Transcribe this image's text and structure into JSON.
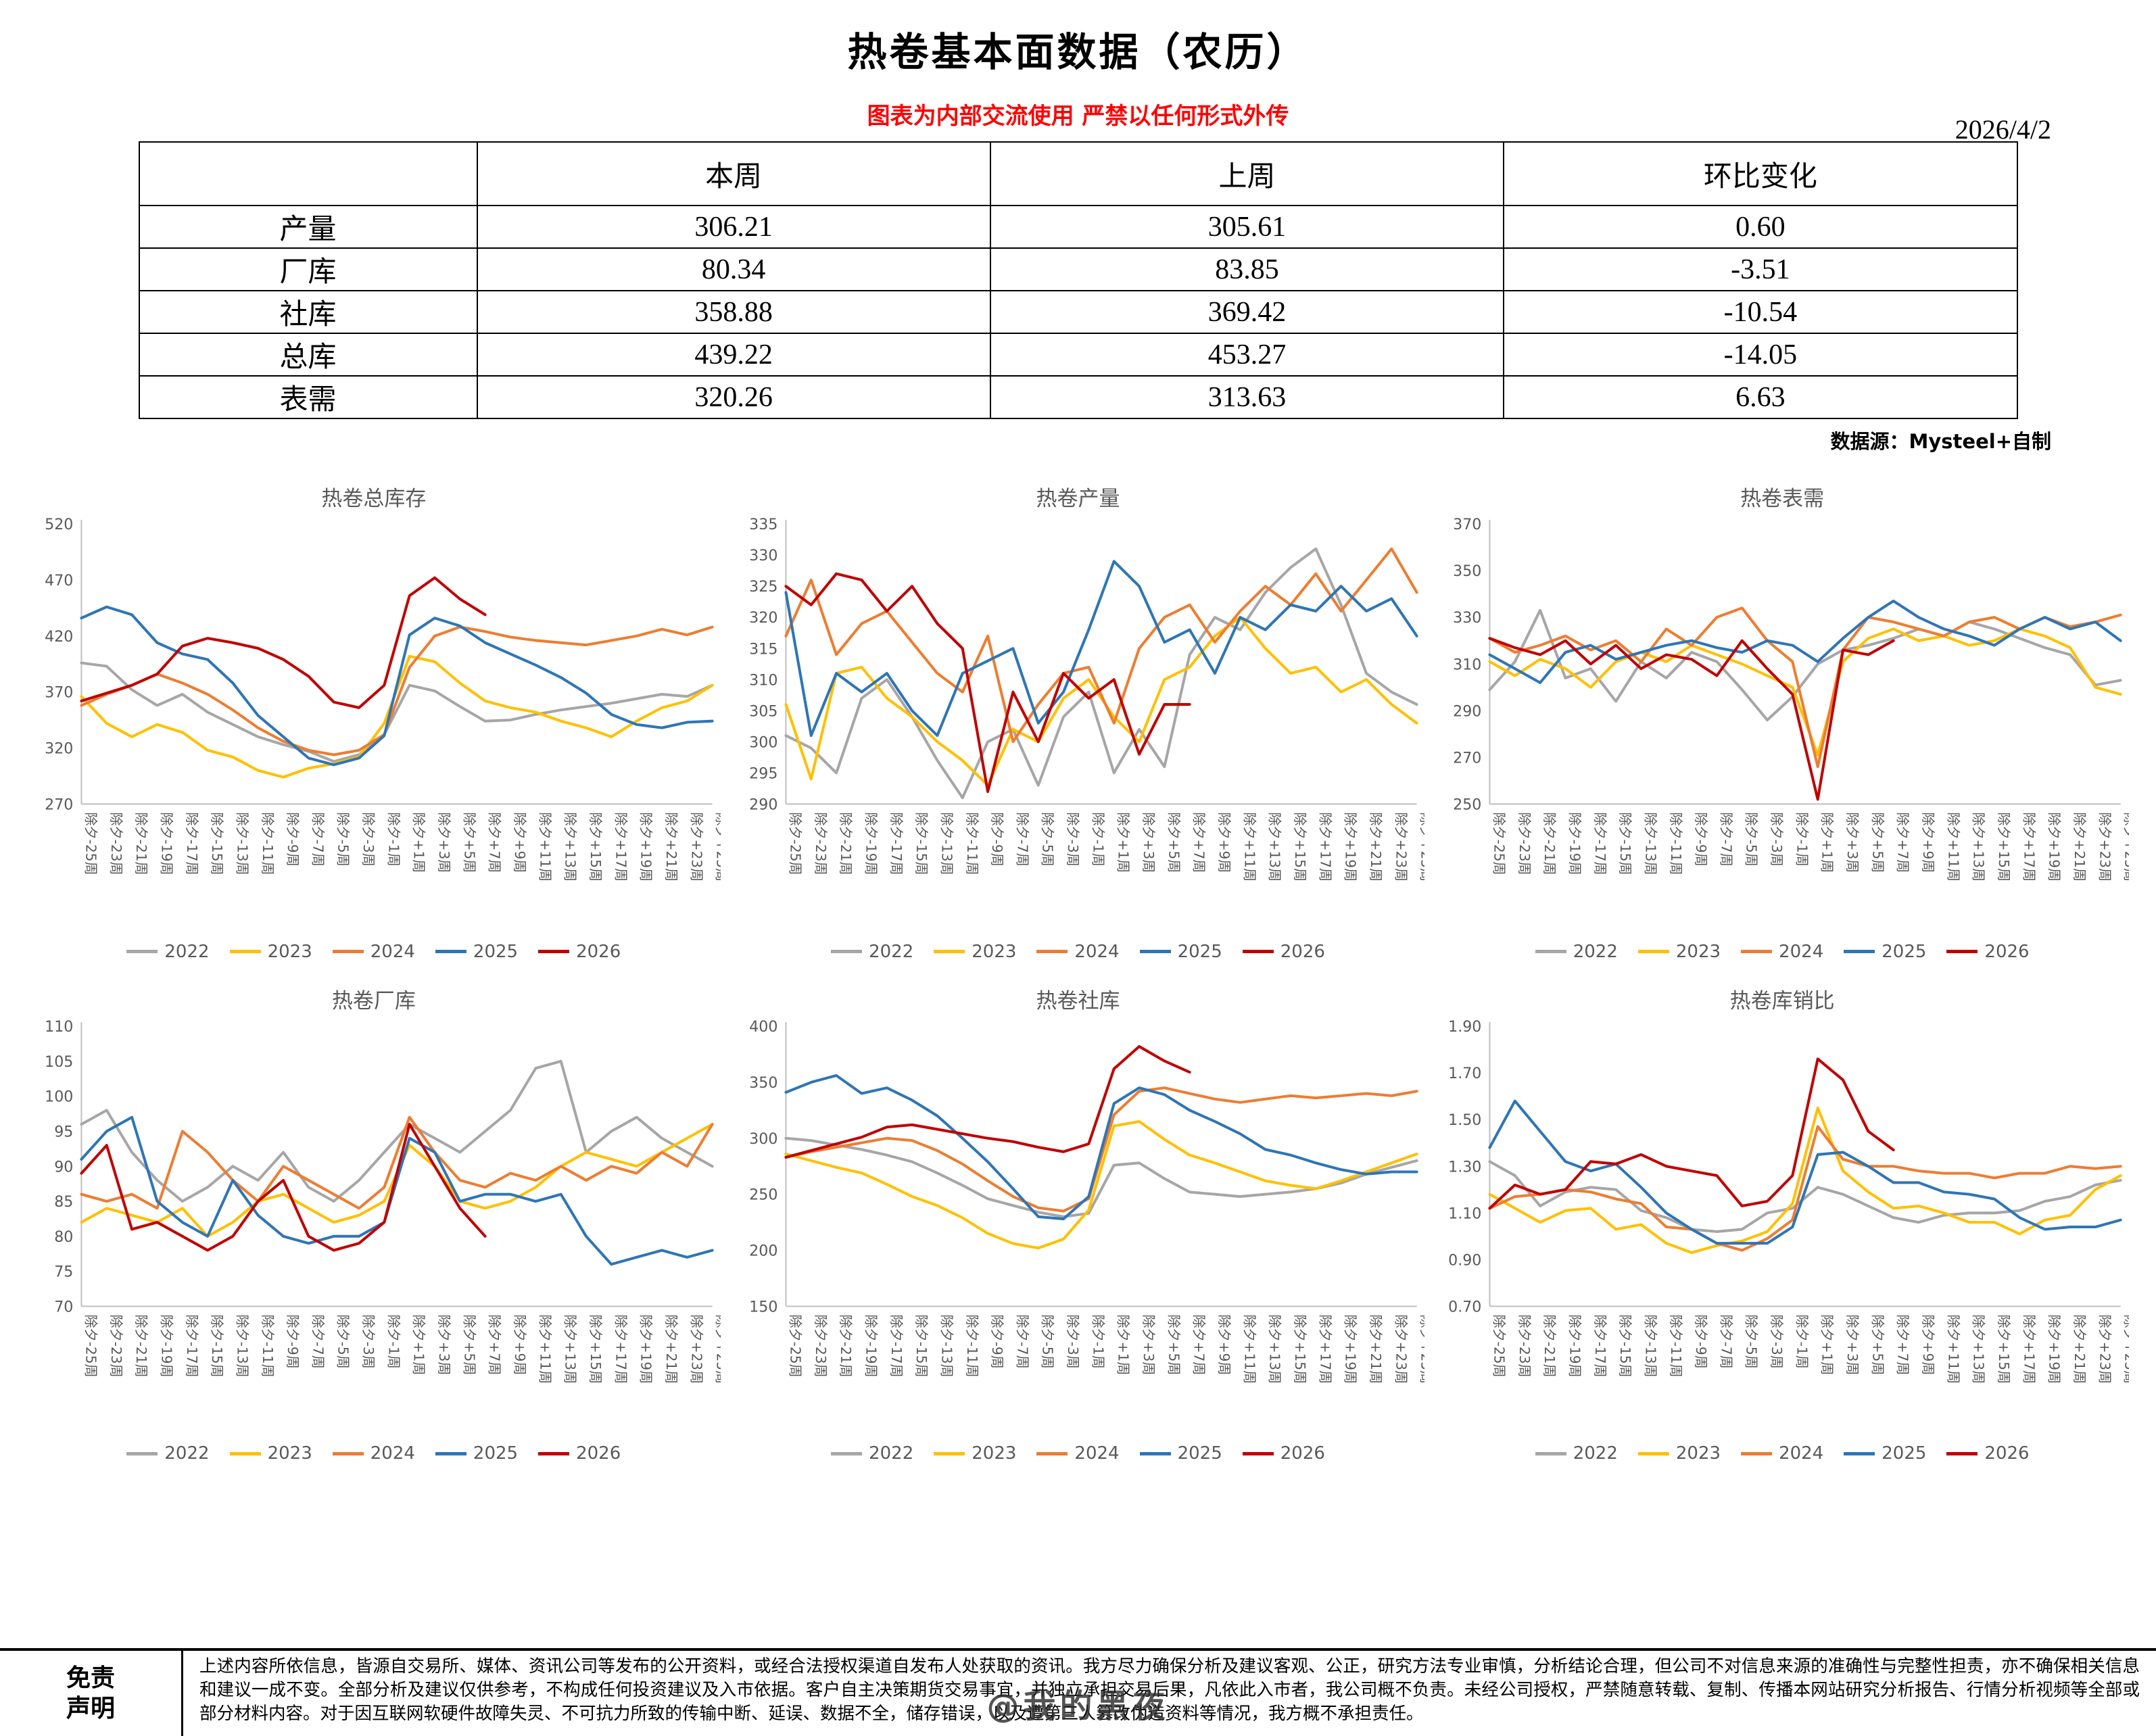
{
  "header": {
    "title": "热卷基本面数据（农历）",
    "date": "2026/4/2",
    "warning": "图表为内部交流使用 严禁以任何形式外传",
    "source": "数据源：Mysteel+自制"
  },
  "table": {
    "headers": [
      "",
      "本周",
      "上周",
      "环比变化"
    ],
    "rows": [
      {
        "label": "产量",
        "this_week": "306.21",
        "last_week": "305.61",
        "change": "0.60"
      },
      {
        "label": "厂库",
        "this_week": "80.34",
        "last_week": "83.85",
        "change": "-3.51"
      },
      {
        "label": "社库",
        "this_week": "358.88",
        "last_week": "369.42",
        "change": "-10.54"
      },
      {
        "label": "总库",
        "this_week": "439.22",
        "last_week": "453.27",
        "change": "-14.05"
      },
      {
        "label": "表需",
        "this_week": "320.26",
        "last_week": "313.63",
        "change": "6.63"
      }
    ]
  },
  "colors": {
    "y2022": "#a6a6a6",
    "y2023": "#ffc000",
    "y2024": "#ed7d31",
    "y2025": "#2e75b6",
    "y2026": "#c00000",
    "warning_red": "#ff0000",
    "axis_gray": "#bfbfbf",
    "tick_gray": "#595959"
  },
  "week_labels": [
    "除夕-25周",
    "除夕-23周",
    "除夕-21周",
    "除夕-19周",
    "除夕-17周",
    "除夕-15周",
    "除夕-13周",
    "除夕-11周",
    "除夕-9周",
    "除夕-7周",
    "除夕-5周",
    "除夕-3周",
    "除夕-1周",
    "除夕+1周",
    "除夕+3周",
    "除夕+5周",
    "除夕+7周",
    "除夕+9周",
    "除夕+11周",
    "除夕+13周",
    "除夕+15周",
    "除夕+17周",
    "除夕+19周",
    "除夕+21周",
    "除夕+23周",
    "除夕+25周"
  ],
  "chart_data": [
    {
      "type": "line",
      "title": "热卷总库存",
      "ylim": [
        270,
        520
      ],
      "yticks": [
        270,
        320,
        370,
        420,
        470,
        520
      ],
      "ydecimals": 0,
      "series": [
        {
          "name": "2022",
          "color": "#a6a6a6",
          "values": [
            396,
            393,
            372,
            358,
            368,
            352,
            341,
            330,
            323,
            317,
            308,
            314,
            332,
            376,
            371,
            357,
            344,
            345,
            350,
            354,
            357,
            360,
            364,
            368,
            366,
            376
          ]
        },
        {
          "name": "2023",
          "color": "#ffc000",
          "values": [
            366,
            342,
            330,
            341,
            334,
            318,
            312,
            300,
            294,
            302,
            306,
            312,
            342,
            402,
            397,
            378,
            362,
            356,
            352,
            344,
            338,
            330,
            344,
            356,
            362,
            376
          ]
        },
        {
          "name": "2024",
          "color": "#ed7d31",
          "values": [
            358,
            368,
            376,
            386,
            378,
            368,
            354,
            338,
            326,
            318,
            314,
            318,
            332,
            392,
            420,
            428,
            424,
            419,
            416,
            414,
            412,
            416,
            420,
            426,
            421,
            428
          ]
        },
        {
          "name": "2025",
          "color": "#2e75b6",
          "values": [
            436,
            446,
            439,
            414,
            404,
            399,
            378,
            349,
            330,
            311,
            305,
            311,
            331,
            421,
            436,
            429,
            414,
            404,
            394,
            383,
            369,
            350,
            341,
            338,
            343,
            344
          ]
        },
        {
          "name": "2026",
          "color": "#c00000",
          "values": [
            362,
            369,
            376,
            386,
            411,
            418,
            414,
            409,
            399,
            384,
            361,
            356,
            376,
            456,
            472,
            453,
            439
          ]
        }
      ]
    },
    {
      "type": "line",
      "title": "热卷产量",
      "ylim": [
        290,
        335
      ],
      "yticks": [
        290,
        295,
        300,
        305,
        310,
        315,
        320,
        325,
        330,
        335
      ],
      "ydecimals": 0,
      "series": [
        {
          "name": "2022",
          "color": "#a6a6a6",
          "values": [
            301,
            299,
            295,
            307,
            310,
            304,
            297,
            291,
            300,
            302,
            293,
            304,
            308,
            295,
            302,
            296,
            314,
            320,
            318,
            324,
            328,
            331,
            322,
            311,
            308,
            306
          ]
        },
        {
          "name": "2023",
          "color": "#ffc000",
          "values": [
            306,
            294,
            311,
            312,
            307,
            304,
            300,
            297,
            293,
            302,
            300,
            307,
            310,
            304,
            300,
            310,
            312,
            317,
            320,
            315,
            311,
            312,
            308,
            310,
            306,
            303
          ]
        },
        {
          "name": "2024",
          "color": "#ed7d31",
          "values": [
            317,
            326,
            314,
            319,
            321,
            316,
            311,
            308,
            317,
            300,
            306,
            311,
            312,
            303,
            315,
            320,
            322,
            316,
            321,
            325,
            322,
            327,
            321,
            326,
            331,
            324
          ]
        },
        {
          "name": "2025",
          "color": "#2e75b6",
          "values": [
            324,
            301,
            311,
            308,
            311,
            305,
            301,
            311,
            313,
            315,
            303,
            308,
            318,
            329,
            325,
            316,
            318,
            311,
            320,
            318,
            322,
            321,
            325,
            321,
            323,
            317
          ]
        },
        {
          "name": "2026",
          "color": "#c00000",
          "values": [
            325,
            322,
            327,
            326,
            321,
            325,
            319,
            315,
            292,
            308,
            300,
            311,
            307,
            310,
            298,
            306,
            306
          ]
        }
      ]
    },
    {
      "type": "line",
      "title": "热卷表需",
      "ylim": [
        250,
        370
      ],
      "yticks": [
        250,
        270,
        290,
        310,
        330,
        350,
        370
      ],
      "ydecimals": 0,
      "series": [
        {
          "name": "2022",
          "color": "#a6a6a6",
          "values": [
            299,
            311,
            333,
            304,
            308,
            294,
            311,
            304,
            315,
            311,
            299,
            286,
            296,
            310,
            316,
            318,
            321,
            325,
            322,
            328,
            325,
            321,
            317,
            314,
            301,
            303
          ]
        },
        {
          "name": "2023",
          "color": "#ffc000",
          "values": [
            311,
            305,
            312,
            308,
            300,
            311,
            315,
            311,
            318,
            314,
            310,
            305,
            300,
            271,
            311,
            321,
            325,
            320,
            322,
            318,
            320,
            325,
            322,
            317,
            300,
            297
          ]
        },
        {
          "name": "2024",
          "color": "#ed7d31",
          "values": [
            321,
            315,
            318,
            322,
            316,
            320,
            311,
            325,
            318,
            330,
            334,
            320,
            311,
            266,
            316,
            330,
            328,
            325,
            322,
            328,
            330,
            325,
            330,
            326,
            328,
            331
          ]
        },
        {
          "name": "2025",
          "color": "#2e75b6",
          "values": [
            314,
            308,
            302,
            315,
            318,
            312,
            315,
            318,
            320,
            317,
            315,
            320,
            318,
            311,
            321,
            330,
            337,
            330,
            325,
            322,
            318,
            325,
            330,
            325,
            328,
            320
          ]
        },
        {
          "name": "2026",
          "color": "#c00000",
          "values": [
            321,
            317,
            314,
            320,
            310,
            318,
            308,
            314,
            312,
            305,
            320,
            308,
            297,
            252,
            316,
            314,
            320
          ]
        }
      ]
    },
    {
      "type": "line",
      "title": "热卷厂库",
      "ylim": [
        70,
        110
      ],
      "yticks": [
        70,
        75,
        80,
        85,
        90,
        95,
        100,
        105,
        110
      ],
      "ydecimals": 0,
      "series": [
        {
          "name": "2022",
          "color": "#a6a6a6",
          "values": [
            96,
            98,
            92,
            88,
            85,
            87,
            90,
            88,
            92,
            87,
            85,
            88,
            92,
            96,
            94,
            92,
            95,
            98,
            104,
            105,
            92,
            95,
            97,
            94,
            92,
            90
          ]
        },
        {
          "name": "2023",
          "color": "#ffc000",
          "values": [
            82,
            84,
            83,
            82,
            84,
            80,
            82,
            85,
            86,
            84,
            82,
            83,
            85,
            93,
            90,
            85,
            84,
            85,
            87,
            90,
            92,
            91,
            90,
            92,
            94,
            96
          ]
        },
        {
          "name": "2024",
          "color": "#ed7d31",
          "values": [
            86,
            85,
            86,
            84,
            95,
            92,
            88,
            85,
            90,
            88,
            86,
            84,
            87,
            97,
            92,
            88,
            87,
            89,
            88,
            90,
            88,
            90,
            89,
            92,
            90,
            96
          ]
        },
        {
          "name": "2025",
          "color": "#2e75b6",
          "values": [
            91,
            95,
            97,
            85,
            82,
            80,
            88,
            83,
            80,
            79,
            80,
            80,
            82,
            94,
            92,
            85,
            86,
            86,
            85,
            86,
            80,
            76,
            77,
            78,
            77,
            78
          ]
        },
        {
          "name": "2026",
          "color": "#c00000",
          "values": [
            89,
            93,
            81,
            82,
            80,
            78,
            80,
            85,
            88,
            80,
            78,
            79,
            82,
            96,
            90,
            84,
            80
          ]
        }
      ]
    },
    {
      "type": "line",
      "title": "热卷社库",
      "ylim": [
        150,
        400
      ],
      "yticks": [
        150,
        200,
        250,
        300,
        350,
        400
      ],
      "ydecimals": 0,
      "series": [
        {
          "name": "2022",
          "color": "#a6a6a6",
          "values": [
            300,
            298,
            294,
            290,
            285,
            279,
            269,
            258,
            246,
            240,
            234,
            230,
            233,
            276,
            278,
            264,
            252,
            250,
            248,
            250,
            252,
            255,
            260,
            268,
            274,
            280
          ]
        },
        {
          "name": "2023",
          "color": "#ffc000",
          "values": [
            286,
            280,
            274,
            269,
            259,
            248,
            240,
            229,
            215,
            206,
            202,
            210,
            236,
            311,
            315,
            299,
            285,
            278,
            270,
            262,
            258,
            255,
            262,
            270,
            278,
            286
          ]
        },
        {
          "name": "2024",
          "color": "#ed7d31",
          "values": [
            283,
            288,
            292,
            296,
            300,
            298,
            289,
            277,
            262,
            248,
            238,
            235,
            246,
            321,
            342,
            345,
            340,
            335,
            332,
            335,
            338,
            336,
            338,
            340,
            338,
            342
          ]
        },
        {
          "name": "2025",
          "color": "#2e75b6",
          "values": [
            341,
            350,
            356,
            340,
            345,
            334,
            320,
            300,
            279,
            255,
            230,
            228,
            248,
            331,
            345,
            339,
            325,
            315,
            304,
            290,
            285,
            278,
            272,
            268,
            270,
            270
          ]
        },
        {
          "name": "2026",
          "color": "#c00000",
          "values": [
            283,
            289,
            295,
            301,
            310,
            312,
            308,
            304,
            300,
            297,
            292,
            288,
            295,
            362,
            382,
            369,
            359
          ]
        }
      ]
    },
    {
      "type": "line",
      "title": "热卷库销比",
      "ylim": [
        0.7,
        1.9
      ],
      "yticks": [
        0.7,
        0.9,
        1.1,
        1.3,
        1.5,
        1.7,
        1.9
      ],
      "ydecimals": 2,
      "series": [
        {
          "name": "2022",
          "color": "#a6a6a6",
          "values": [
            1.32,
            1.26,
            1.13,
            1.19,
            1.21,
            1.2,
            1.11,
            1.08,
            1.03,
            1.02,
            1.03,
            1.1,
            1.12,
            1.21,
            1.18,
            1.13,
            1.08,
            1.06,
            1.09,
            1.1,
            1.1,
            1.11,
            1.15,
            1.17,
            1.22,
            1.24
          ]
        },
        {
          "name": "2023",
          "color": "#ffc000",
          "values": [
            1.18,
            1.12,
            1.06,
            1.11,
            1.12,
            1.03,
            1.05,
            0.97,
            0.93,
            0.96,
            0.98,
            1.02,
            1.14,
            1.55,
            1.28,
            1.19,
            1.12,
            1.13,
            1.1,
            1.06,
            1.06,
            1.01,
            1.07,
            1.09,
            1.2,
            1.26
          ]
        },
        {
          "name": "2024",
          "color": "#ed7d31",
          "values": [
            1.12,
            1.17,
            1.18,
            1.2,
            1.19,
            1.16,
            1.14,
            1.04,
            1.03,
            0.97,
            0.94,
            0.99,
            1.07,
            1.47,
            1.33,
            1.3,
            1.3,
            1.28,
            1.27,
            1.27,
            1.25,
            1.27,
            1.27,
            1.3,
            1.29,
            1.3
          ]
        },
        {
          "name": "2025",
          "color": "#2e75b6",
          "values": [
            1.38,
            1.58,
            1.45,
            1.32,
            1.28,
            1.31,
            1.21,
            1.1,
            1.03,
            0.97,
            0.97,
            0.97,
            1.04,
            1.35,
            1.36,
            1.3,
            1.23,
            1.23,
            1.19,
            1.18,
            1.16,
            1.08,
            1.03,
            1.04,
            1.04,
            1.07
          ]
        },
        {
          "name": "2026",
          "color": "#c00000",
          "values": [
            1.12,
            1.22,
            1.18,
            1.2,
            1.32,
            1.31,
            1.35,
            1.3,
            1.28,
            1.26,
            1.13,
            1.15,
            1.26,
            1.76,
            1.67,
            1.45,
            1.37
          ]
        }
      ]
    }
  ],
  "footer": {
    "label_line1": "免责",
    "label_line2": "声明",
    "disclaimer": "上述内容所依信息，皆源自交易所、媒体、资讯公司等发布的公开资料，或经合法授权渠道自发布人处获取的资讯。我方尽力确保分析及建议客观、公正，研究方法专业审慎，分析结论合理，但公司不对信息来源的准确性与完整性担责，亦不确保相关信息和建议一成不变。全部分析及建议仅供参考，不构成任何投资建议及入市依据。客户自主决策期货交易事宜，并独立承担交易后果，凡依此入市者，我公司概不负责。未经公司授权，严禁随意转载、复制、传播本网站研究分析报告、行情分析视频等全部或部分材料内容。对于因互联网软硬件故障失灵、不可抗力所致的传输中断、延误、数据不全，储存错误，以及遭第三人篡改伪造资料等情况，我方概不承担责任。",
    "watermark": "@我的黑夜"
  }
}
